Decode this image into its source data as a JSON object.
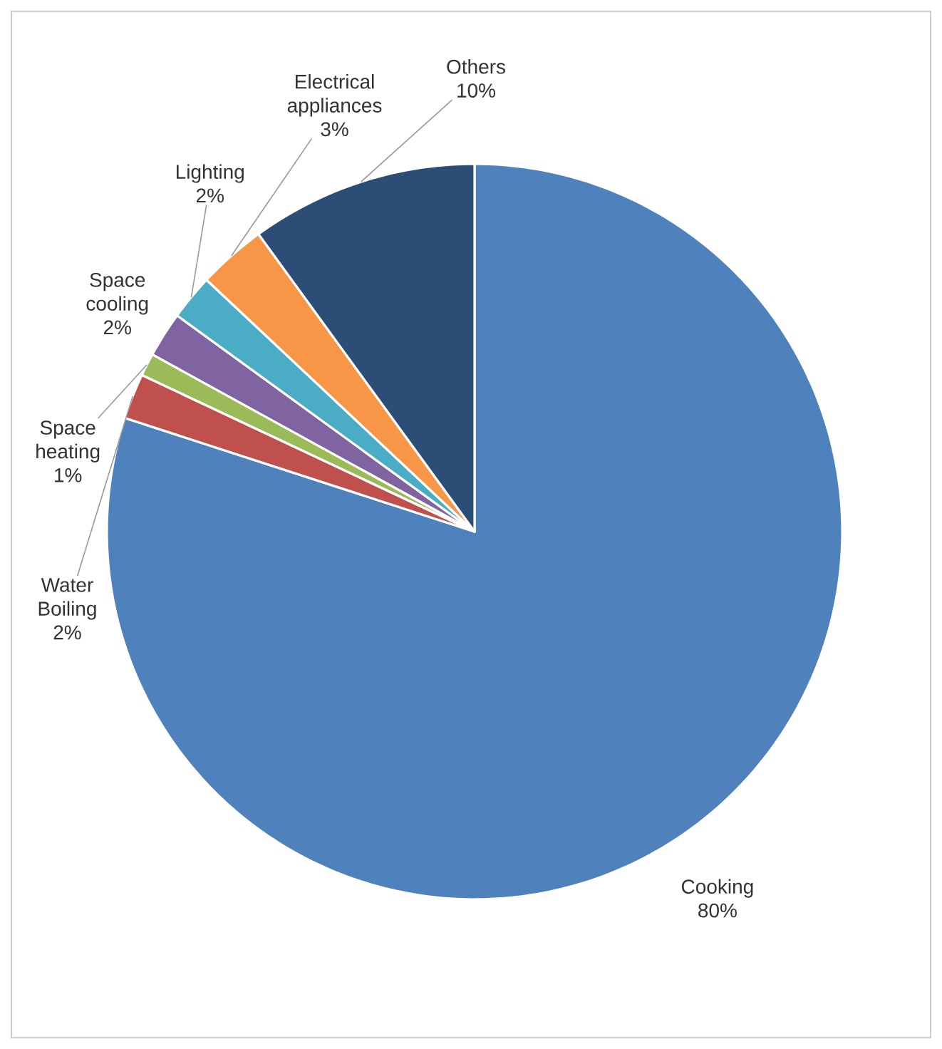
{
  "chart_data": {
    "type": "pie",
    "categories": [
      "Cooking",
      "Water Boiling",
      "Space heating",
      "Space cooling",
      "Lighting",
      "Electrical appliances",
      "Others"
    ],
    "values": [
      80,
      2,
      1,
      2,
      2,
      3,
      10
    ],
    "value_labels": [
      "80%",
      "2%",
      "1%",
      "2%",
      "2%",
      "3%",
      "10%"
    ],
    "colors": [
      "#4f81bd",
      "#c0504d",
      "#9bbb59",
      "#8064a2",
      "#4bacc6",
      "#f79646",
      "#2c4d75"
    ]
  }
}
